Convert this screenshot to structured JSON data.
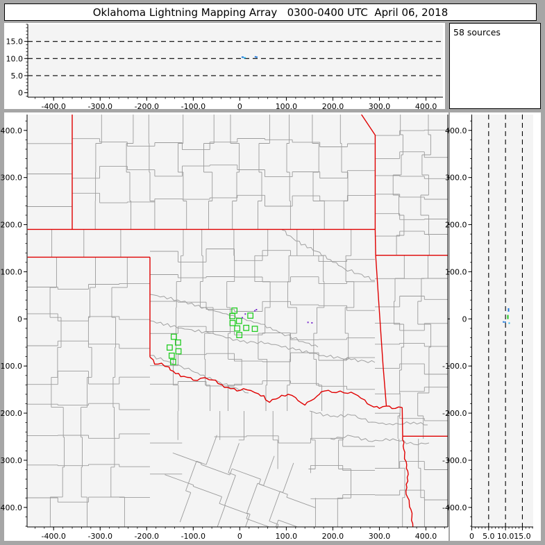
{
  "title": "Oklahoma Lightning Mapping Array   0300-0400 UTC  April 06, 2018",
  "sources_panel": {
    "label": "58 sources"
  },
  "colors": {
    "frame": "#a6a6a6",
    "panel": "#ffffff",
    "plot_bg": "#f4f4f4",
    "county_line": "#9b9b9b",
    "river_line": "#a0a0a0",
    "state_border": "#e00000",
    "station": "#22cc22",
    "axis": "#000000",
    "source_purple": "#7a2bd0",
    "source_blue": "#1e78dc",
    "source_cyan": "#2ab4e8",
    "source_green": "#22c822"
  },
  "chart_data": [
    {
      "id": "altitude-vs-eastwest",
      "type": "scatter",
      "position": "top",
      "xlim": [
        -455.5,
        436.4
      ],
      "ylim": [
        -1.3,
        20.0
      ],
      "x_ticks": [
        [
          -400,
          "-400.0"
        ],
        [
          -300,
          "-300.0"
        ],
        [
          -200,
          "-200.0"
        ],
        [
          -100,
          "-100.0"
        ],
        [
          0,
          "0"
        ],
        [
          100,
          "100.0"
        ],
        [
          200,
          "200.0"
        ],
        [
          300,
          "300.0"
        ],
        [
          400,
          "400.0"
        ]
      ],
      "y_ticks": [
        [
          15,
          "15.0"
        ],
        [
          10,
          "10.0"
        ],
        [
          5,
          "5.0"
        ],
        [
          0,
          "0"
        ]
      ],
      "y_dashed_gridlines": [
        5,
        10,
        15
      ],
      "x_minor_step": 20,
      "y_minor_step": 1,
      "points": [
        {
          "x": 6.0,
          "y": 10.4,
          "color": "#1e78dc",
          "w": 3,
          "h": 2
        },
        {
          "x": 10.5,
          "y": 10.2,
          "color": "#2ab4e8",
          "w": 3,
          "h": 2
        },
        {
          "x": 33.5,
          "y": 10.5,
          "color": "#1e78dc",
          "w": 2,
          "h": 2
        },
        {
          "x": 36.5,
          "y": 10.4,
          "color": "#1e78dc",
          "w": 2,
          "h": 2
        }
      ]
    },
    {
      "id": "plan-view-map",
      "type": "scatter",
      "position": "main",
      "xlim": [
        -457,
        447
      ],
      "ylim": [
        -441.5,
        433.6
      ],
      "x_ticks": [
        [
          -400,
          "-400.0"
        ],
        [
          -300,
          "-300.0"
        ],
        [
          -200,
          "-200.0"
        ],
        [
          -100,
          "-100.0"
        ],
        [
          0,
          "0"
        ],
        [
          100,
          "100.0"
        ],
        [
          200,
          "200.0"
        ],
        [
          300,
          "300.0"
        ],
        [
          400,
          "400.0"
        ]
      ],
      "y_ticks": [
        [
          400,
          "400.0"
        ],
        [
          300,
          "300.0"
        ],
        [
          200,
          "200.0"
        ],
        [
          100,
          "100.0"
        ],
        [
          0,
          "0"
        ],
        [
          -100,
          "-100.0"
        ],
        [
          -200,
          "-200.0"
        ],
        [
          -300,
          "-300.0"
        ],
        [
          -400,
          "-400.0"
        ]
      ],
      "x_minor_step": 20,
      "y_minor_step": 20,
      "stations_km": [
        [
          -11.5,
          17.7
        ],
        [
          -16,
          5.9
        ],
        [
          22.8,
          6.9
        ],
        [
          -15.4,
          -8.8
        ],
        [
          -1.5,
          -4.4
        ],
        [
          -5.5,
          -20.2
        ],
        [
          13.9,
          -19.1
        ],
        [
          32.4,
          -21.1
        ],
        [
          -1,
          -34.3
        ],
        [
          -141.7,
          -37.9
        ],
        [
          -132.7,
          -50.1
        ],
        [
          -150.6,
          -60.8
        ],
        [
          -131.7,
          -68.8
        ],
        [
          -146.2,
          -78.1
        ],
        [
          -143.2,
          -91.3
        ]
      ],
      "points": [
        {
          "x": 11.9,
          "y": 10.3,
          "color": "#7a2bd0",
          "w": 2,
          "h": 2
        },
        {
          "x": 5.5,
          "y": 2.5,
          "color": "#7a2bd0",
          "w": 2,
          "h": 2
        },
        {
          "x": 32.4,
          "y": 17.2,
          "color": "#7a2bd0",
          "w": 2,
          "h": 2
        },
        {
          "x": 35.8,
          "y": 19.6,
          "color": "#7a2bd0",
          "w": 2,
          "h": 2
        },
        {
          "x": 146.6,
          "y": -7.4,
          "color": "#7a2bd0",
          "w": 2,
          "h": 2
        },
        {
          "x": 155.1,
          "y": -8.4,
          "color": "#7a2bd0",
          "w": 2,
          "h": 2
        }
      ],
      "state_borders": [
        {
          "name": "colorado-kansas",
          "pts": [
            [
              -360,
              434
            ],
            [
              -360,
              190
            ]
          ]
        },
        {
          "name": "kansas-oklahoma",
          "pts": [
            [
              -456,
              190
            ],
            [
              291,
              190
            ]
          ]
        },
        {
          "name": "kansas-missouri",
          "pts": [
            [
              291,
              190
            ],
            [
              291,
              390
            ],
            [
              260,
              436
            ]
          ]
        },
        {
          "name": "oklahoma-missouri",
          "pts": [
            [
              291,
              190
            ],
            [
              292,
              135
            ]
          ]
        },
        {
          "name": "missouri-arkansas",
          "pts": [
            [
              292,
              135
            ],
            [
              450,
              135
            ]
          ]
        },
        {
          "name": "oklahoma-arkansas",
          "pts": [
            [
              292,
              135
            ],
            [
              299,
              30
            ],
            [
              308,
              -100
            ],
            [
              315,
              -185
            ]
          ]
        },
        {
          "name": "red-river-confluence",
          "wiggle": 1.5,
          "pts": [
            [
              315,
              -185
            ],
            [
              334,
              -190
            ],
            [
              349,
              -188
            ]
          ]
        },
        {
          "name": "texas-arkansas",
          "pts": [
            [
              349,
              -188
            ],
            [
              350,
              -249
            ]
          ]
        },
        {
          "name": "arkansas-louisiana",
          "pts": [
            [
              350,
              -249
            ],
            [
              450,
              -249
            ]
          ]
        },
        {
          "name": "texas-louisiana",
          "wiggle": 1,
          "pts": [
            [
              350,
              -249
            ],
            [
              354,
              -290
            ],
            [
              362,
              -330
            ],
            [
              357,
              -365
            ],
            [
              368,
              -405
            ],
            [
              372,
              -442
            ]
          ]
        },
        {
          "name": "texas-oklahoma-panhandle",
          "pts": [
            [
              -456,
              131
            ],
            [
              -193,
              131
            ]
          ]
        },
        {
          "name": "oklahoma-west",
          "pts": [
            [
              -193,
              131
            ],
            [
              -193,
              -81
            ]
          ]
        },
        {
          "name": "red-river",
          "wiggle": 2,
          "pts": [
            [
              -193,
              -81
            ],
            [
              -183,
              -96
            ],
            [
              -168,
              -94
            ],
            [
              -152,
              -102
            ],
            [
              -138,
              -116
            ],
            [
              -120,
              -122
            ],
            [
              -100,
              -130
            ],
            [
              -84,
              -126
            ],
            [
              -66,
              -129
            ],
            [
              -52,
              -130
            ],
            [
              -38,
              -140
            ],
            [
              -20,
              -148
            ],
            [
              -6,
              -153
            ],
            [
              8,
              -148
            ],
            [
              24,
              -152
            ],
            [
              40,
              -159
            ],
            [
              52,
              -163
            ],
            [
              64,
              -177
            ],
            [
              78,
              -170
            ],
            [
              90,
              -162
            ],
            [
              104,
              -160
            ],
            [
              120,
              -167
            ],
            [
              132,
              -178
            ],
            [
              140,
              -183
            ],
            [
              152,
              -174
            ],
            [
              166,
              -164
            ],
            [
              182,
              -153
            ],
            [
              198,
              -156
            ],
            [
              216,
              -153
            ],
            [
              232,
              -158
            ],
            [
              246,
              -159
            ],
            [
              260,
              -168
            ],
            [
              274,
              -180
            ],
            [
              288,
              -187
            ],
            [
              300,
              -190
            ],
            [
              315,
              -185
            ]
          ]
        }
      ]
    },
    {
      "id": "altitude-vs-northsouth",
      "type": "scatter",
      "position": "right",
      "xlim": [
        0,
        18.2
      ],
      "ylim": [
        -441.5,
        433.6
      ],
      "x_ticks": [
        [
          0,
          "0"
        ],
        [
          5,
          "5.0"
        ],
        [
          10,
          "10.0"
        ],
        [
          15,
          "15.0"
        ]
      ],
      "y_ticks": [
        [
          400,
          "400.0"
        ],
        [
          300,
          "300.0"
        ],
        [
          200,
          "200.0"
        ],
        [
          100,
          "100.0"
        ],
        [
          0,
          "0"
        ],
        [
          -100,
          "-100.0"
        ],
        [
          -200,
          "-200.0"
        ],
        [
          -300,
          "-300.0"
        ],
        [
          -400,
          "-400.0"
        ]
      ],
      "x_dashed_gridlines": [
        5,
        10,
        15
      ],
      "x_minor_step": 1,
      "y_minor_step": 20,
      "points": [
        {
          "x": 10.9,
          "y": 19,
          "color": "#1e78dc",
          "w": 2,
          "h": 5
        },
        {
          "x": 10.7,
          "y": 4,
          "color": "#22c822",
          "w": 2,
          "h": 6
        },
        {
          "x": 9.4,
          "y": -6.5,
          "color": "#1e78dc",
          "w": 2,
          "h": 2
        },
        {
          "x": 9.9,
          "y": -6.8,
          "color": "#1e78dc",
          "w": 2,
          "h": 2
        },
        {
          "x": 11.1,
          "y": -9,
          "color": "#2ab4e8",
          "w": 2,
          "h": 2
        }
      ]
    }
  ]
}
